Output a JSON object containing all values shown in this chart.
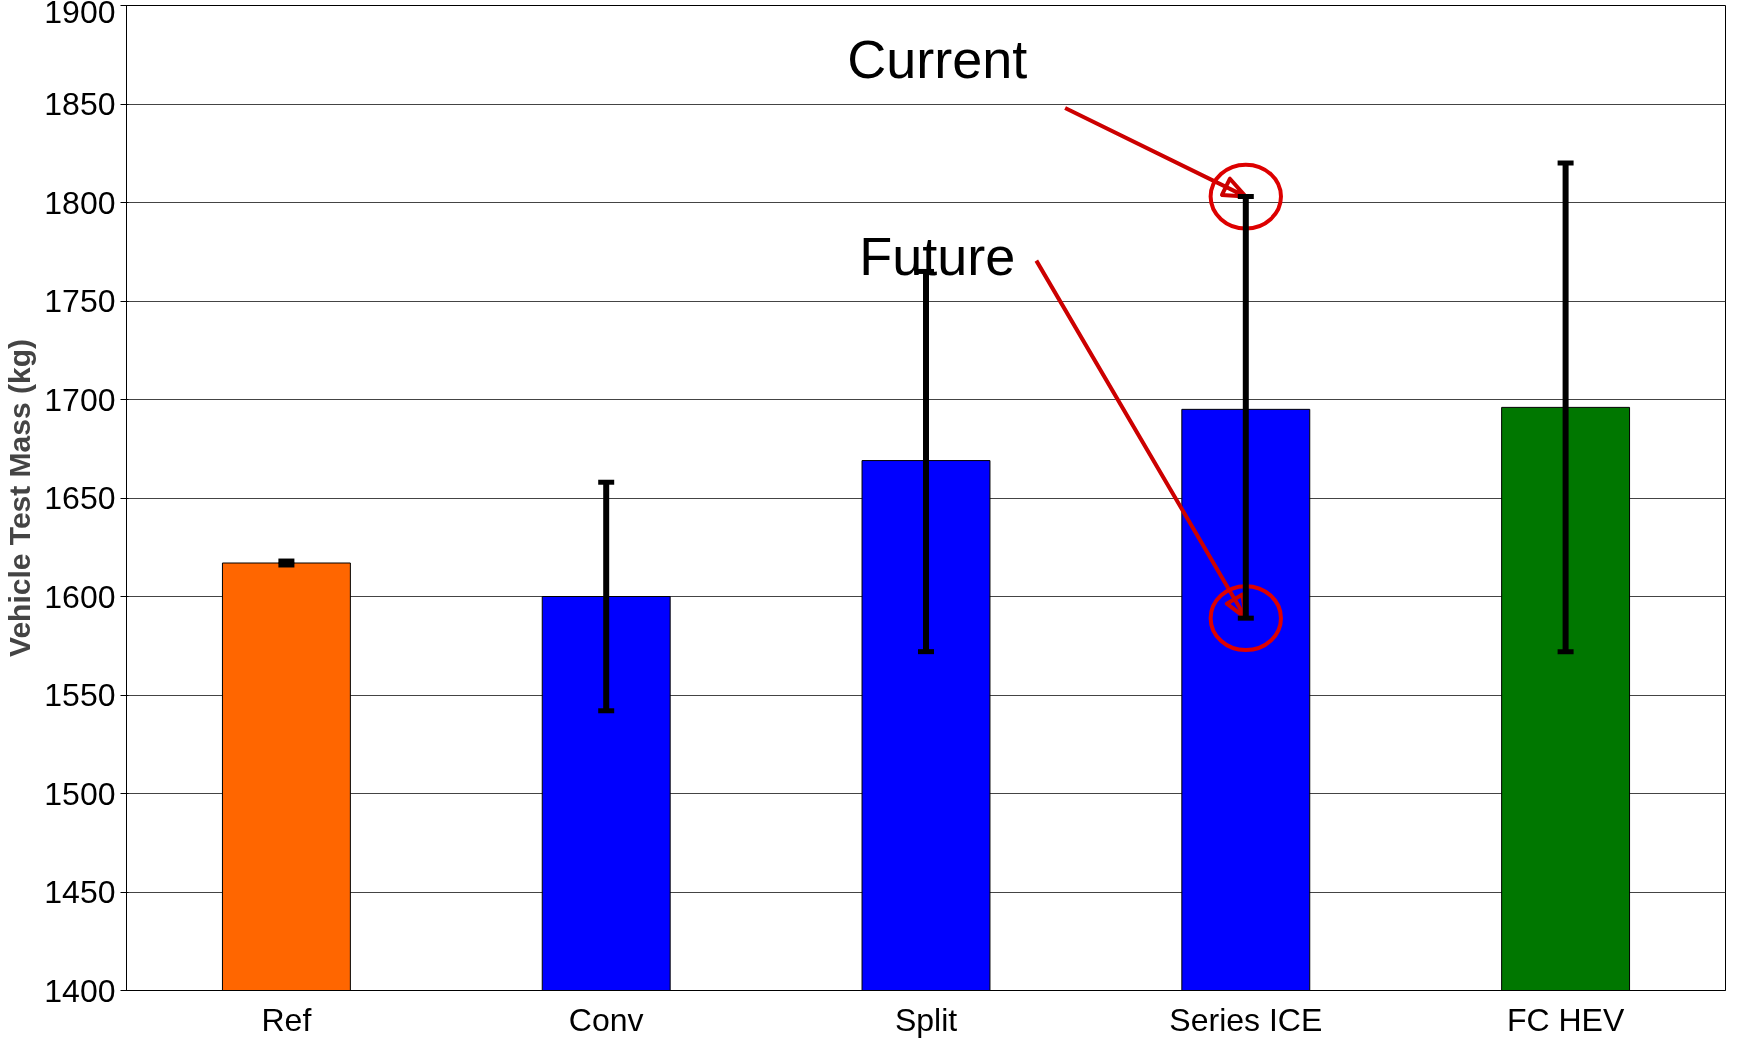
{
  "chart_data": {
    "type": "bar",
    "ylabel": "Vehicle Test Mass (kg)",
    "categories": [
      "Ref",
      "Conv",
      "Split",
      "Series ICE",
      "FC HEV"
    ],
    "values": [
      1617,
      1600,
      1669,
      1695,
      1696
    ],
    "colors": [
      "#ff6600",
      "#0000ff",
      "#0000ff",
      "#0000ff",
      "#007700"
    ],
    "errors": [
      [
        1616,
        1618
      ],
      [
        1542,
        1658
      ],
      [
        1572,
        1765
      ],
      [
        1589,
        1803
      ],
      [
        1572,
        1820
      ]
    ],
    "ylim": [
      1400,
      1900
    ],
    "yticks": [
      1400,
      1450,
      1500,
      1550,
      1600,
      1650,
      1700,
      1750,
      1800,
      1850,
      1900
    ],
    "grid": "y",
    "annotations": [
      {
        "text": "Current",
        "x": "Series ICE",
        "y": 1803
      },
      {
        "text": "Future",
        "x": "Series ICE",
        "y": 1589
      }
    ]
  }
}
